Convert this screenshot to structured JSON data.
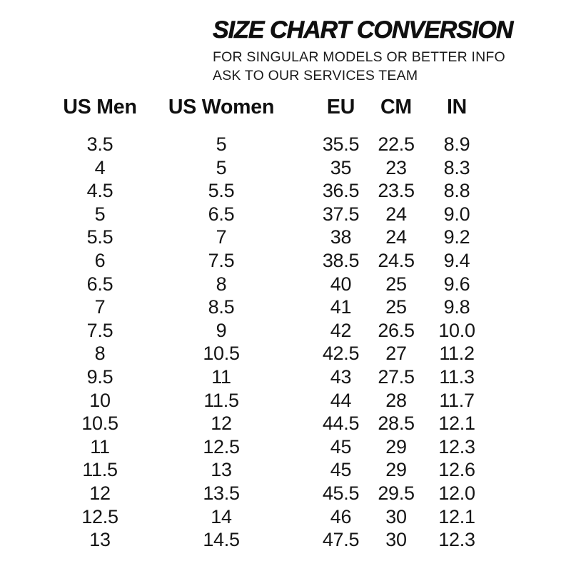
{
  "page": {
    "title": "SIZE CHART CONVERSION",
    "subtitle_lines": [
      "FOR SINGULAR MODELS OR BETTER INFO",
      "ASK TO OUR SERVICES TEAM"
    ]
  },
  "chart_data": {
    "type": "table",
    "title": "SIZE CHART CONVERSION",
    "columns": [
      "US Men",
      "US Women",
      "EU",
      "CM",
      "IN"
    ],
    "rows": [
      [
        "3.5",
        "5",
        "35.5",
        "22.5",
        "8.9"
      ],
      [
        "4",
        "5",
        "35",
        "23",
        "8.3"
      ],
      [
        "4.5",
        "5.5",
        "36.5",
        "23.5",
        "8.8"
      ],
      [
        "5",
        "6.5",
        "37.5",
        "24",
        "9.0"
      ],
      [
        "5.5",
        "7",
        "38",
        "24",
        "9.2"
      ],
      [
        "6",
        "7.5",
        "38.5",
        "24.5",
        "9.4"
      ],
      [
        "6.5",
        "8",
        "40",
        "25",
        "9.6"
      ],
      [
        "7",
        "8.5",
        "41",
        "25",
        "9.8"
      ],
      [
        "7.5",
        "9",
        "42",
        "26.5",
        "10.0"
      ],
      [
        "8",
        "10.5",
        "42.5",
        "27",
        "11.2"
      ],
      [
        "9.5",
        "11",
        "43",
        "27.5",
        "11.3"
      ],
      [
        "10",
        "11.5",
        "44",
        "28",
        "11.7"
      ],
      [
        "10.5",
        "12",
        "44.5",
        "28.5",
        "12.1"
      ],
      [
        "11",
        "12.5",
        "45",
        "29",
        "12.3"
      ],
      [
        "11.5",
        "13",
        "45",
        "29",
        "12.6"
      ],
      [
        "12",
        "13.5",
        "45.5",
        "29.5",
        "12.0"
      ],
      [
        "12.5",
        "14",
        "46",
        "30",
        "12.1"
      ],
      [
        "13",
        "14.5",
        "47.5",
        "30",
        "12.3"
      ]
    ],
    "layout": {
      "header_bold": true,
      "grid": "off",
      "legend": "none"
    }
  },
  "colors": {
    "text": "#161616",
    "title": "#0f0f0f",
    "background": "#ffffff"
  }
}
